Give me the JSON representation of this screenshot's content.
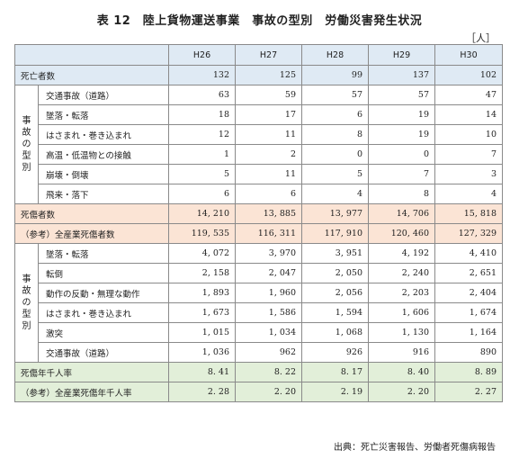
{
  "title": "表 12　陸上貨物運送事業　事故の型別　労働災害発生状況",
  "unit": "［人］",
  "years": [
    "H26",
    "H27",
    "H28",
    "H29",
    "H30"
  ],
  "deaths_total": {
    "label": "死亡者数",
    "values": [
      "132",
      "125",
      "99",
      "137",
      "102"
    ]
  },
  "death_group_label": "事故の型別",
  "death_rows": [
    {
      "label": "交通事故（道路）",
      "values": [
        "63",
        "59",
        "57",
        "57",
        "47"
      ]
    },
    {
      "label": "墜落・転落",
      "values": [
        "18",
        "17",
        "6",
        "19",
        "14"
      ]
    },
    {
      "label": "はさまれ・巻き込まれ",
      "values": [
        "12",
        "11",
        "8",
        "19",
        "10"
      ]
    },
    {
      "label": "高温・低温物との接触",
      "values": [
        "1",
        "2",
        "0",
        "0",
        "7"
      ]
    },
    {
      "label": "崩壊・倒壊",
      "values": [
        "5",
        "11",
        "5",
        "7",
        "3"
      ]
    },
    {
      "label": "飛来・落下",
      "values": [
        "6",
        "6",
        "4",
        "8",
        "4"
      ]
    }
  ],
  "casualties_total": {
    "label": "死傷者数",
    "values": [
      "14, 210",
      "13, 885",
      "13, 977",
      "14, 706",
      "15, 818"
    ]
  },
  "all_industry_casualties": {
    "label": "（参考）全産業死傷者数",
    "values": [
      "119, 535",
      "116, 311",
      "117, 910",
      "120, 460",
      "127, 329"
    ]
  },
  "casualty_group_label": "事故の型別",
  "casualty_rows": [
    {
      "label": "墜落・転落",
      "values": [
        "4, 072",
        "3, 970",
        "3, 951",
        "4, 192",
        "4, 410"
      ]
    },
    {
      "label": "転倒",
      "values": [
        "2, 158",
        "2, 047",
        "2, 050",
        "2, 240",
        "2, 651"
      ]
    },
    {
      "label": "動作の反動・無理な動作",
      "values": [
        "1, 893",
        "1, 960",
        "2, 056",
        "2, 203",
        "2, 404"
      ]
    },
    {
      "label": "はさまれ・巻き込まれ",
      "values": [
        "1, 673",
        "1, 586",
        "1, 594",
        "1, 606",
        "1, 674"
      ]
    },
    {
      "label": "激突",
      "values": [
        "1, 015",
        "1, 034",
        "1, 068",
        "1, 130",
        "1, 164"
      ]
    },
    {
      "label": "交通事故（道路）",
      "values": [
        "1, 036",
        "962",
        "926",
        "916",
        "890"
      ]
    }
  ],
  "rate": {
    "label": "死傷年千人率",
    "values": [
      "8. 41",
      "8. 22",
      "8. 17",
      "8. 40",
      "8. 89"
    ]
  },
  "all_industry_rate": {
    "label": "（参考）全産業死傷年千人率",
    "values": [
      "2. 28",
      "2. 20",
      "2. 19",
      "2. 20",
      "2. 27"
    ]
  },
  "source": "出典：死亡災害報告、労働者死傷病報告"
}
